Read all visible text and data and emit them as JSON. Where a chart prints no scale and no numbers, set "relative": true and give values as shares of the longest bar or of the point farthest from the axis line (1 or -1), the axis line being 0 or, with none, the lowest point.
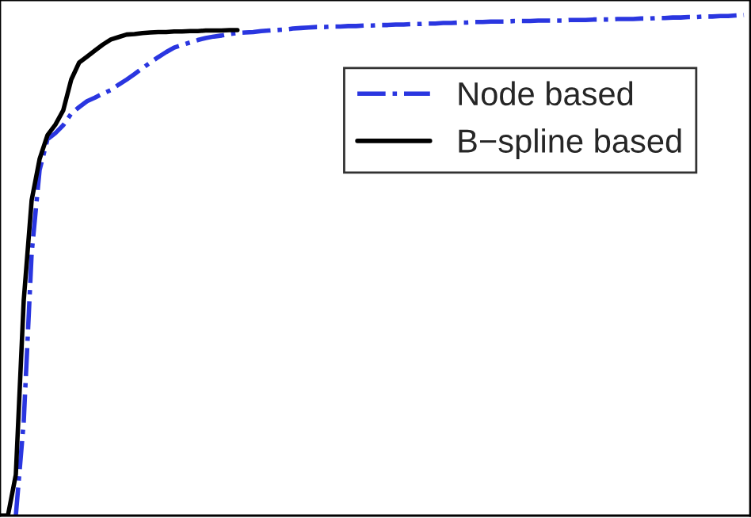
{
  "chart_data": {
    "type": "line",
    "relative": true,
    "legend": "top right",
    "categories": [
      null,
      null,
      null,
      null,
      null,
      null,
      null,
      null,
      null,
      null,
      null,
      null,
      null,
      null,
      null,
      null,
      null,
      null,
      null,
      null,
      null,
      null,
      null,
      null,
      null,
      null,
      null,
      null,
      null,
      null,
      null,
      null,
      null,
      null,
      null,
      null,
      null,
      null,
      null,
      null,
      null,
      null,
      null,
      null,
      null,
      null,
      null,
      null,
      null,
      null,
      null,
      null,
      null,
      null,
      null,
      null,
      null,
      null,
      null,
      null,
      null,
      null,
      null,
      null,
      null,
      null,
      null,
      null,
      null,
      null,
      null,
      null,
      null,
      null,
      null,
      null,
      null,
      null,
      null,
      null,
      null,
      null,
      null,
      null,
      null,
      null,
      null,
      null,
      null,
      null,
      null,
      null,
      null,
      null,
      null
    ],
    "series": [
      {
        "name": "Node based",
        "color": "#2a36e0",
        "line_style": "dashdot",
        "values": [
          null,
          null,
          0,
          0.188,
          0.524,
          0.69,
          0.752,
          0.764,
          0.78,
          0.803,
          0.816,
          0.828,
          0.835,
          0.843,
          0.85,
          0.861,
          0.871,
          0.882,
          0.894,
          0.905,
          0.916,
          0.926,
          0.935,
          0.94,
          0.945,
          0.95,
          0.954,
          0.957,
          0.959,
          0.962,
          0.964,
          0.965,
          0.966,
          0.968,
          0.969,
          0.97,
          0.971,
          0.973,
          0.974,
          0.975,
          0.976,
          0.976,
          0.977,
          0.977,
          0.978,
          0.978,
          0.979,
          0.979,
          0.98,
          0.98,
          0.981,
          0.981,
          0.982,
          0.982,
          0.983,
          0.983,
          0.984,
          0.984,
          0.985,
          0.985,
          0.986,
          0.986,
          0.987,
          0.987,
          0.987,
          0.988,
          0.988,
          0.988,
          0.989,
          0.989,
          0.989,
          0.989,
          0.99,
          0.99,
          0.99,
          0.991,
          0.991,
          0.991,
          0.992,
          0.992,
          0.992,
          0.993,
          0.993,
          0.994,
          0.994,
          0.995,
          0.995,
          0.996,
          0.996,
          0.997,
          0.997,
          0.998,
          0.998,
          0.999,
          1
        ]
      },
      {
        "name": "B−spline based",
        "color": "#000000",
        "line_style": "solid",
        "values": [
          0,
          0,
          0.082,
          0.43,
          0.63,
          0.712,
          0.76,
          0.781,
          0.81,
          0.871,
          0.905,
          0.917,
          0.929,
          0.941,
          0.951,
          0.956,
          0.961,
          0.962,
          0.964,
          0.965,
          0.966,
          0.966,
          0.967,
          0.967,
          0.968,
          0.968,
          0.969,
          0.969,
          0.969,
          0.97,
          0.97,
          null,
          null,
          null,
          null,
          null,
          null,
          null,
          null,
          null,
          null,
          null,
          null,
          null,
          null,
          null,
          null,
          null,
          null,
          null,
          null,
          null,
          null,
          null,
          null,
          null,
          null,
          null,
          null,
          null,
          null,
          null,
          null,
          null,
          null,
          null,
          null,
          null,
          null,
          null,
          null,
          null,
          null,
          null,
          null,
          null,
          null,
          null,
          null,
          null,
          null,
          null,
          null,
          null,
          null,
          null,
          null,
          null,
          null,
          null,
          null,
          null,
          null,
          null,
          null
        ]
      }
    ]
  }
}
